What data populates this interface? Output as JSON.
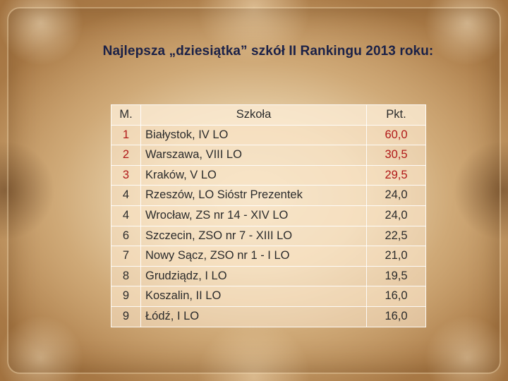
{
  "slide": {
    "title": "Najlepsza „dziesiątka” szkół II Rankingu 2013 roku:"
  },
  "table": {
    "headers": {
      "rank": "M.",
      "school": "Szkoła",
      "points": "Pkt."
    },
    "rows": [
      {
        "rank": "1",
        "school": "Białystok, IV LO",
        "points": "60,0"
      },
      {
        "rank": "2",
        "school": "Warszawa, VIII LO",
        "points": "30,5"
      },
      {
        "rank": "3",
        "school": "Kraków, V LO",
        "points": "29,5"
      },
      {
        "rank": "4",
        "school": "Rzeszów, LO Sióstr Prezentek",
        "points": "24,0"
      },
      {
        "rank": "4",
        "school": "Wrocław, ZS nr 14 - XIV LO",
        "points": "24,0"
      },
      {
        "rank": "6",
        "school": "Szczecin, ZSO nr 7 - XIII LO",
        "points": "22,5"
      },
      {
        "rank": "7",
        "school": "Nowy Sącz, ZSO nr 1 - I LO",
        "points": "21,0"
      },
      {
        "rank": "8",
        "school": "Grudziądz, I LO",
        "points": "19,5"
      },
      {
        "rank": "9",
        "school": "Koszalin, II LO",
        "points": "16,0"
      },
      {
        "rank": "9",
        "school": "Łódź, I LO",
        "points": "16,0"
      }
    ]
  },
  "colors": {
    "title_text": "#1b2147",
    "top_points_text": "#b01818",
    "body_text": "#2b2b2b"
  }
}
